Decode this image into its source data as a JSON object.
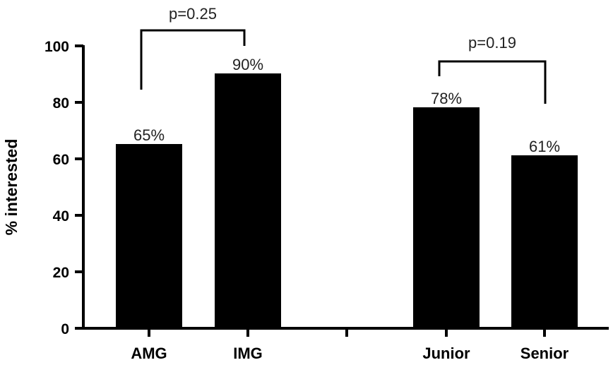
{
  "chart_data": {
    "type": "bar",
    "title": "",
    "xlabel": "",
    "ylabel": "% interested",
    "ylim": [
      0,
      100
    ],
    "yticks": [
      "0",
      "20",
      "40",
      "60",
      "80",
      "100"
    ],
    "categories": [
      "AMG",
      "IMG",
      "Junior",
      "Senior"
    ],
    "values": [
      65,
      90,
      78,
      61
    ],
    "data_labels": [
      "65%",
      "90%",
      "78%",
      "61%"
    ],
    "bar_color": "#000000",
    "comparisons": [
      {
        "from": "AMG",
        "to": "IMG",
        "label": "p=0.25"
      },
      {
        "from": "Junior",
        "to": "Senior",
        "label": "p=0.19"
      }
    ]
  }
}
